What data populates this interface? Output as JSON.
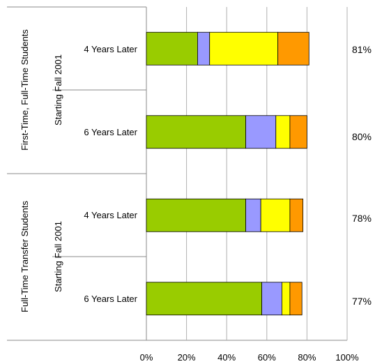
{
  "chart_data": {
    "type": "bar",
    "orientation": "horizontal",
    "stacked": true,
    "groups": [
      {
        "line1": "First-Time, Full-Time Students",
        "line2": "Starting Fall 2001"
      },
      {
        "line1": "Full-Time Transfer Students",
        "line2": "Starting Fall 2001"
      }
    ],
    "categories": [
      "4 Years Later",
      "6 Years Later",
      "4 Years Later",
      "6 Years Later"
    ],
    "series": [
      {
        "color": "#99CC00",
        "values": [
          25.5,
          49.5,
          49.5,
          57.5
        ]
      },
      {
        "color": "#9999FF",
        "values": [
          6,
          15,
          7.5,
          10
        ]
      },
      {
        "color": "#FFFF00",
        "values": [
          34,
          7,
          14.5,
          4
        ]
      },
      {
        "color": "#FF9900",
        "values": [
          15.5,
          8.5,
          6.5,
          6
        ]
      }
    ],
    "totals": [
      "81%",
      "80%",
      "78%",
      "77%"
    ],
    "xticks": [
      "0%",
      "20%",
      "40%",
      "60%",
      "80%",
      "100%"
    ],
    "xlim": [
      0,
      100
    ],
    "grid": true,
    "legend": "none"
  }
}
